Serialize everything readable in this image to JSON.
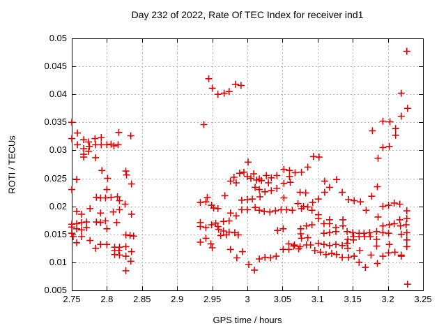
{
  "chart_data": {
    "type": "scatter",
    "title": "Day 232 of 2022, Rate Of TEC Index for receiver ind1",
    "xlabel": "GPS time / hours",
    "ylabel": "ROTI / TECUs",
    "xlim": [
      2.75,
      3.25
    ],
    "ylim": [
      0.005,
      0.05
    ],
    "xticks": [
      2.75,
      2.8,
      2.85,
      2.9,
      2.95,
      3,
      3.05,
      3.1,
      3.15,
      3.2,
      3.25
    ],
    "xtick_labels": [
      "2.75",
      "2.8",
      "2.85",
      "2.9",
      "2.95",
      "3",
      "3.05",
      "3.1",
      "3.15",
      "3.2",
      "3.25"
    ],
    "yticks": [
      0.005,
      0.01,
      0.015,
      0.02,
      0.025,
      0.03,
      0.035,
      0.04,
      0.045,
      0.05
    ],
    "ytick_labels": [
      "0.005",
      "0.01",
      "0.015",
      "0.02",
      "0.025",
      "0.03",
      "0.035",
      "0.04",
      "0.045",
      "0.05"
    ],
    "grid": true,
    "legend": "none",
    "marker": {
      "shape": "plus",
      "color": "#e00000",
      "size": 10,
      "stroke_width": 1.6
    },
    "frame_color": "#000000",
    "grid_color": "#b3b3b3",
    "series": [
      {
        "name": "ROTI",
        "points": [
          [
            2.75,
            0.035
          ],
          [
            2.758,
            0.0331
          ],
          [
            2.75,
            0.0321
          ],
          [
            2.758,
            0.031
          ],
          [
            2.767,
            0.0319
          ],
          [
            2.767,
            0.0303
          ],
          [
            2.774,
            0.0315
          ],
          [
            2.775,
            0.0307
          ],
          [
            2.783,
            0.0321
          ],
          [
            2.792,
            0.0323
          ],
          [
            2.784,
            0.031
          ],
          [
            2.792,
            0.031
          ],
          [
            2.8,
            0.031
          ],
          [
            2.806,
            0.0311
          ],
          [
            2.81,
            0.0308
          ],
          [
            2.816,
            0.031
          ],
          [
            2.817,
            0.0332
          ],
          [
            2.834,
            0.0326
          ],
          [
            2.767,
            0.0293
          ],
          [
            2.774,
            0.0298
          ],
          [
            2.767,
            0.0288
          ],
          [
            2.784,
            0.0287
          ],
          [
            2.793,
            0.0264
          ],
          [
            2.801,
            0.025
          ],
          [
            2.827,
            0.0263
          ],
          [
            2.828,
            0.0256
          ],
          [
            2.835,
            0.024
          ],
          [
            2.757,
            0.0248
          ],
          [
            2.75,
            0.023
          ],
          [
            2.8,
            0.023
          ],
          [
            2.785,
            0.0216
          ],
          [
            2.791,
            0.0215
          ],
          [
            2.798,
            0.0215
          ],
          [
            2.806,
            0.0216
          ],
          [
            2.815,
            0.0217
          ],
          [
            2.818,
            0.021
          ],
          [
            2.826,
            0.0204
          ],
          [
            2.757,
            0.0191
          ],
          [
            2.776,
            0.0196
          ],
          [
            2.764,
            0.0186
          ],
          [
            2.791,
            0.0188
          ],
          [
            2.809,
            0.019
          ],
          [
            2.818,
            0.0194
          ],
          [
            2.835,
            0.0186
          ],
          [
            2.785,
            0.0172
          ],
          [
            2.791,
            0.0171
          ],
          [
            2.798,
            0.0174
          ],
          [
            2.814,
            0.0171
          ],
          [
            2.75,
            0.0168
          ],
          [
            2.75,
            0.0163
          ],
          [
            2.757,
            0.0169
          ],
          [
            2.764,
            0.0171
          ],
          [
            2.771,
            0.0172
          ],
          [
            2.757,
            0.016
          ],
          [
            2.764,
            0.0158
          ],
          [
            2.771,
            0.0162
          ],
          [
            2.8,
            0.016
          ],
          [
            2.75,
            0.0152
          ],
          [
            2.752,
            0.0146
          ],
          [
            2.764,
            0.0146
          ],
          [
            2.776,
            0.0139
          ],
          [
            2.757,
            0.0135
          ],
          [
            2.791,
            0.0132
          ],
          [
            2.8,
            0.0132
          ],
          [
            2.784,
            0.0125
          ],
          [
            2.827,
            0.0149
          ],
          [
            2.833,
            0.0148
          ],
          [
            2.838,
            0.0147
          ],
          [
            2.811,
            0.0127
          ],
          [
            2.818,
            0.0127
          ],
          [
            2.811,
            0.0121
          ],
          [
            2.817,
            0.0121
          ],
          [
            2.811,
            0.0114
          ],
          [
            2.818,
            0.0113
          ],
          [
            2.827,
            0.0128
          ],
          [
            2.827,
            0.0111
          ],
          [
            2.835,
            0.0119
          ],
          [
            2.834,
            0.0102
          ],
          [
            2.827,
            0.0085
          ],
          [
            2.938,
            0.0346
          ],
          [
            2.945,
            0.0428
          ],
          [
            2.95,
            0.0411
          ],
          [
            2.958,
            0.04
          ],
          [
            2.967,
            0.0402
          ],
          [
            2.974,
            0.0405
          ],
          [
            2.983,
            0.0418
          ],
          [
            2.991,
            0.0416
          ],
          [
            3.001,
            0.0279
          ],
          [
            2.976,
            0.0245
          ],
          [
            2.981,
            0.0252
          ],
          [
            2.984,
            0.0242
          ],
          [
            2.989,
            0.0259
          ],
          [
            2.995,
            0.0261
          ],
          [
            3.0,
            0.0253
          ],
          [
            3.005,
            0.025
          ],
          [
            3.009,
            0.0258
          ],
          [
            3.013,
            0.0247
          ],
          [
            3.017,
            0.023
          ],
          [
            3.02,
            0.0246
          ],
          [
            3.025,
            0.0226
          ],
          [
            3.027,
            0.0255
          ],
          [
            3.03,
            0.0242
          ],
          [
            3.034,
            0.0251
          ],
          [
            3.034,
            0.0228
          ],
          [
            3.042,
            0.0255
          ],
          [
            3.042,
            0.0232
          ],
          [
            3.052,
            0.0266
          ],
          [
            3.06,
            0.0264
          ],
          [
            3.06,
            0.0253
          ],
          [
            3.068,
            0.026
          ],
          [
            3.077,
            0.0261
          ],
          [
            3.052,
            0.0241
          ],
          [
            3.061,
            0.0243
          ],
          [
            3.086,
            0.027
          ],
          [
            3.011,
            0.0234
          ],
          [
            3.017,
            0.0249
          ],
          [
            3.075,
            0.0225
          ],
          [
            3.083,
            0.0224
          ],
          [
            2.933,
            0.0207
          ],
          [
            2.941,
            0.0208
          ],
          [
            2.949,
            0.0202
          ],
          [
            2.952,
            0.0197
          ],
          [
            2.958,
            0.0196
          ],
          [
            2.943,
            0.0216
          ],
          [
            2.968,
            0.0219
          ],
          [
            2.992,
            0.0211
          ],
          [
            3.0,
            0.0212
          ],
          [
            3.007,
            0.0213
          ],
          [
            3.018,
            0.0217
          ],
          [
            3.052,
            0.0215
          ],
          [
            2.992,
            0.0194
          ],
          [
            3.0,
            0.0194
          ],
          [
            3.011,
            0.0198
          ],
          [
            3.017,
            0.0193
          ],
          [
            3.024,
            0.0191
          ],
          [
            3.032,
            0.019
          ],
          [
            3.04,
            0.0192
          ],
          [
            3.048,
            0.0194
          ],
          [
            3.056,
            0.0194
          ],
          [
            3.064,
            0.0193
          ],
          [
            3.072,
            0.0205
          ],
          [
            3.08,
            0.02
          ],
          [
            2.976,
            0.0188
          ],
          [
            2.984,
            0.0183
          ],
          [
            2.933,
            0.0171
          ],
          [
            2.933,
            0.0164
          ],
          [
            2.941,
            0.0162
          ],
          [
            2.949,
            0.0167
          ],
          [
            2.955,
            0.017
          ],
          [
            2.958,
            0.0164
          ],
          [
            2.959,
            0.0159
          ],
          [
            2.966,
            0.0173
          ],
          [
            2.974,
            0.0174
          ],
          [
            2.966,
            0.0156
          ],
          [
            2.974,
            0.0154
          ],
          [
            2.982,
            0.0153
          ],
          [
            2.962,
            0.0148
          ],
          [
            2.97,
            0.0149
          ],
          [
            2.987,
            0.0149
          ],
          [
            2.941,
            0.0143
          ],
          [
            2.933,
            0.0136
          ],
          [
            2.948,
            0.0133
          ],
          [
            2.95,
            0.0126
          ],
          [
            2.976,
            0.0123
          ],
          [
            2.993,
            0.0119
          ],
          [
            2.985,
            0.0108
          ],
          [
            3.002,
            0.0096
          ],
          [
            3.01,
            0.0086
          ],
          [
            3.017,
            0.0106
          ],
          [
            3.025,
            0.0109
          ],
          [
            3.033,
            0.0108
          ],
          [
            3.041,
            0.0111
          ],
          [
            3.051,
            0.0123
          ],
          [
            3.059,
            0.0133
          ],
          [
            3.059,
            0.0123
          ],
          [
            3.067,
            0.0131
          ],
          [
            3.075,
            0.0128
          ],
          [
            3.043,
            0.0157
          ],
          [
            3.051,
            0.016
          ],
          [
            3.076,
            0.016
          ],
          [
            3.076,
            0.0151
          ],
          [
            3.066,
            0.0129
          ],
          [
            3.073,
            0.0124
          ],
          [
            3.077,
            0.0143
          ],
          [
            3.227,
            0.0477
          ],
          [
            3.219,
            0.0402
          ],
          [
            3.228,
            0.0375
          ],
          [
            3.219,
            0.0361
          ],
          [
            3.193,
            0.0352
          ],
          [
            3.203,
            0.0351
          ],
          [
            3.178,
            0.0335
          ],
          [
            3.211,
            0.0339
          ],
          [
            3.211,
            0.0327
          ],
          [
            3.193,
            0.0305
          ],
          [
            3.202,
            0.0307
          ],
          [
            3.186,
            0.0286
          ],
          [
            3.094,
            0.0289
          ],
          [
            3.102,
            0.0288
          ],
          [
            3.11,
            0.0245
          ],
          [
            3.127,
            0.0248
          ],
          [
            3.117,
            0.0234
          ],
          [
            3.11,
            0.0225
          ],
          [
            3.135,
            0.0225
          ],
          [
            3.185,
            0.0235
          ],
          [
            3.177,
            0.0218
          ],
          [
            3.144,
            0.0212
          ],
          [
            3.152,
            0.021
          ],
          [
            3.161,
            0.0208
          ],
          [
            3.101,
            0.0213
          ],
          [
            3.093,
            0.0207
          ],
          [
            3.086,
            0.0199
          ],
          [
            3.077,
            0.0196
          ],
          [
            3.092,
            0.0193
          ],
          [
            3.169,
            0.0193
          ],
          [
            3.193,
            0.02
          ],
          [
            3.201,
            0.0202
          ],
          [
            3.209,
            0.0206
          ],
          [
            3.217,
            0.0204
          ],
          [
            3.227,
            0.0192
          ],
          [
            3.186,
            0.0181
          ],
          [
            3.101,
            0.0185
          ],
          [
            3.101,
            0.0178
          ],
          [
            3.117,
            0.0176
          ],
          [
            3.109,
            0.0169
          ],
          [
            3.117,
            0.0169
          ],
          [
            3.136,
            0.0176
          ],
          [
            3.126,
            0.0162
          ],
          [
            3.136,
            0.0165
          ],
          [
            3.084,
            0.0165
          ],
          [
            3.092,
            0.0167
          ],
          [
            3.193,
            0.0165
          ],
          [
            3.202,
            0.0167
          ],
          [
            3.209,
            0.0169
          ],
          [
            3.217,
            0.0176
          ],
          [
            3.218,
            0.0165
          ],
          [
            3.226,
            0.0167
          ],
          [
            3.227,
            0.0178
          ],
          [
            3.109,
            0.0152
          ],
          [
            3.117,
            0.0153
          ],
          [
            3.126,
            0.0155
          ],
          [
            3.142,
            0.0155
          ],
          [
            3.15,
            0.0153
          ],
          [
            3.151,
            0.0146
          ],
          [
            3.159,
            0.0152
          ],
          [
            3.159,
            0.0146
          ],
          [
            3.166,
            0.0152
          ],
          [
            3.167,
            0.0146
          ],
          [
            3.174,
            0.0153
          ],
          [
            3.175,
            0.0146
          ],
          [
            3.184,
            0.0155
          ],
          [
            3.193,
            0.0153
          ],
          [
            3.201,
            0.0152
          ],
          [
            3.227,
            0.0153
          ],
          [
            3.219,
            0.015
          ],
          [
            3.086,
            0.0144
          ],
          [
            3.143,
            0.0141
          ],
          [
            3.151,
            0.014
          ],
          [
            3.084,
            0.0131
          ],
          [
            3.09,
            0.0131
          ],
          [
            3.096,
            0.0121
          ],
          [
            3.101,
            0.0134
          ],
          [
            3.104,
            0.0118
          ],
          [
            3.109,
            0.0132
          ],
          [
            3.112,
            0.0114
          ],
          [
            3.117,
            0.013
          ],
          [
            3.12,
            0.0116
          ],
          [
            3.126,
            0.0132
          ],
          [
            3.127,
            0.0114
          ],
          [
            3.135,
            0.013
          ],
          [
            3.135,
            0.0109
          ],
          [
            3.142,
            0.0134
          ],
          [
            3.143,
            0.0125
          ],
          [
            3.144,
            0.0109
          ],
          [
            3.152,
            0.0111
          ],
          [
            3.16,
            0.0121
          ],
          [
            3.159,
            0.01
          ],
          [
            3.168,
            0.0091
          ],
          [
            3.176,
            0.0113
          ],
          [
            3.184,
            0.0141
          ],
          [
            3.184,
            0.0129
          ],
          [
            3.185,
            0.0098
          ],
          [
            3.193,
            0.0111
          ],
          [
            3.201,
            0.0117
          ],
          [
            3.202,
            0.0132
          ],
          [
            3.21,
            0.0118
          ],
          [
            3.219,
            0.0113
          ],
          [
            3.219,
            0.0111
          ],
          [
            3.227,
            0.014
          ],
          [
            3.227,
            0.0128
          ],
          [
            3.228,
            0.0061
          ]
        ]
      }
    ]
  }
}
